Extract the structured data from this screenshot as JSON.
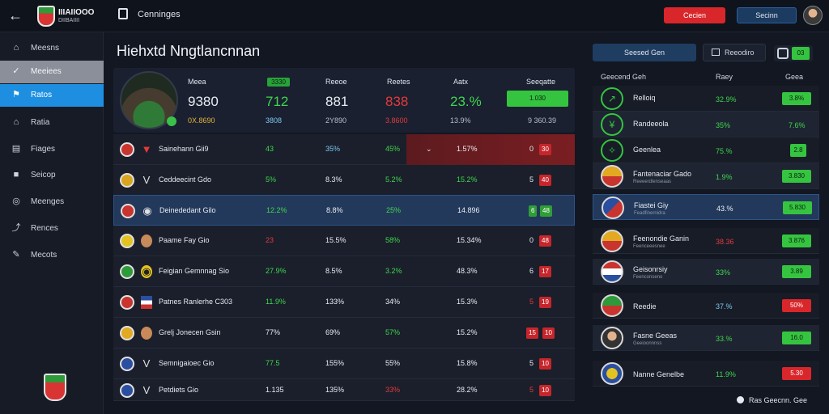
{
  "topbar": {
    "brand_line1": "IIIAIIOOO",
    "brand_line2": "DIIBAIIII",
    "title": "Cenninges",
    "btn_red_label": "Cecien",
    "btn_blue_label": "Secinn"
  },
  "sidebar": {
    "items": [
      {
        "label": "Meesns",
        "icon": "home-icon",
        "glyph": "⌂"
      },
      {
        "label": "Meeiees",
        "icon": "check-icon",
        "glyph": "✓"
      },
      {
        "label": "Ratos",
        "icon": "flag-icon",
        "glyph": "⚑"
      },
      {
        "label": "Ratia",
        "icon": "home-icon",
        "glyph": "⌂"
      },
      {
        "label": "Fiages",
        "icon": "document-icon",
        "glyph": "▤"
      },
      {
        "label": "Seicop",
        "icon": "square-icon",
        "glyph": "■"
      },
      {
        "label": "Meenges",
        "icon": "target-icon",
        "glyph": "◎"
      },
      {
        "label": "Rences",
        "icon": "chart-icon",
        "glyph": "⤴"
      },
      {
        "label": "Mecots",
        "icon": "pencil-icon",
        "glyph": "✎"
      }
    ]
  },
  "main": {
    "page_title": "Hiehxtd Nngtlancnnan",
    "hero": {
      "col1": {
        "head": "Meea",
        "big": "9380",
        "sub": "0X.8690"
      },
      "col2": {
        "chip": "3330",
        "big": "712",
        "sub": "3808"
      },
      "col3": {
        "head": "Reeoe",
        "big": "881",
        "sub": "2Y890"
      },
      "col4": {
        "head": "Reetes",
        "big": "838",
        "sub": "3.8600"
      },
      "col5": {
        "head": "Aatx",
        "big": "23.%",
        "sub": "13.9%"
      },
      "col6": {
        "head": "Seeqatte",
        "chip": "1.030",
        "sub": "9 360.39"
      }
    },
    "rows": [
      {
        "name": "Sainehann Gii9",
        "c1": "43",
        "c2": "35%",
        "c3": "45%",
        "c4": "1.57%",
        "pill_a": "0",
        "pill_b": "30",
        "style": "hl-red"
      },
      {
        "name": "Ceddeecint Gdo",
        "c1": "5%",
        "c2": "8.3%",
        "c3": "5.2%",
        "c4": "15.2%",
        "pill_a": "5",
        "pill_b": "40",
        "style": ""
      },
      {
        "name": "Deinededant Gilo",
        "c1": "12.2%",
        "c2": "8.8%",
        "c3": "25%",
        "c4": "14.896",
        "pill_a": "6",
        "pill_b": "48",
        "style": "hl-blue"
      },
      {
        "name": "Paame Fay Gio",
        "c1": "23",
        "c2": "15.5%",
        "c3": "58%",
        "c4": "15.34%",
        "pill_a": "0",
        "pill_b": "48",
        "style": ""
      },
      {
        "name": "Feigian Gemnnag Sio",
        "c1": "27.9%",
        "c2": "8.5%",
        "c3": "3.2%",
        "c4": "48.3%",
        "pill_a": "6",
        "pill_b": "17",
        "style": ""
      },
      {
        "name": "Patnes Ranlerhe C303",
        "c1": "11.9%",
        "c2": "133%",
        "c3": "34%",
        "c4": "15.3%",
        "pill_a": "5",
        "pill_b": "19",
        "style": ""
      },
      {
        "name": "Grelj Jonecen Gsin",
        "c1": "77%",
        "c2": "69%",
        "c3": "57%",
        "c4": "15.2%",
        "pill_a": "15",
        "pill_b": "10",
        "style": ""
      },
      {
        "name": "Semnigaioec Gio",
        "c1": "77.5",
        "c2": "155%",
        "c3": "55%",
        "c4": "15.8%",
        "pill_a": "5",
        "pill_b": "10",
        "style": ""
      },
      {
        "name": "Petdiets Gio",
        "c1": "1.135",
        "c2": "135%",
        "c3": "33%",
        "c4": "28.2%",
        "pill_a": "5",
        "pill_b": "10",
        "style": ""
      }
    ]
  },
  "right_panel": {
    "tab_active": "Seesed Gen",
    "tab_second": "Reeodiro",
    "toggle_label": "03",
    "headers": {
      "col1": "Geecend Geh",
      "col2": "Raey",
      "col3": "Geea"
    },
    "rows": [
      {
        "name": "Relloiq",
        "sub": "",
        "val": "32.9%",
        "pill": "3.8%",
        "val_color": "g",
        "pill_color": "green"
      },
      {
        "name": "Randeeola",
        "sub": "",
        "val": "35%",
        "pill": "7.6%",
        "val_color": "g",
        "pill_color": "none"
      },
      {
        "name": "Geenlea",
        "sub": "",
        "val": "75.%",
        "pill": "2.8",
        "val_color": "g",
        "pill_color": "small"
      },
      {
        "name": "Fantenaciar Gado",
        "sub": "Reeeerdlenseaas",
        "val": "1.9%",
        "pill": "3.830",
        "val_color": "g",
        "pill_color": "green"
      },
      {
        "name": "Fiastei Giy",
        "sub": "Feadfinernidra",
        "val": "43.%",
        "pill": "5.830",
        "val_color": "w",
        "pill_color": "green"
      },
      {
        "name": "Feenondie Ganin",
        "sub": "Feenceeesnee",
        "val": "38.36",
        "pill": "3.876",
        "val_color": "r",
        "pill_color": "green"
      },
      {
        "name": "Geisonrsiy",
        "sub": "Feenconseno",
        "val": "33%",
        "pill": "3.89",
        "val_color": "g",
        "pill_color": "green"
      },
      {
        "name": "Reedie",
        "sub": "",
        "val": "37.%",
        "pill": "50%",
        "val_color": "c",
        "pill_color": "red"
      },
      {
        "name": "Fasne Geeas",
        "sub": "Geeioonnnss",
        "val": "33.%",
        "pill": "16.0",
        "val_color": "g",
        "pill_color": "green"
      },
      {
        "name": "Nanne Genelbe",
        "sub": "",
        "val": "11.9%",
        "pill": "5.30",
        "val_color": "g",
        "pill_color": "red"
      }
    ],
    "footer": "Ras Geecnn. Gee"
  },
  "colors": {
    "accent_blue": "#1e8fe0",
    "accent_green": "#35c440",
    "accent_red": "#d9262b"
  }
}
